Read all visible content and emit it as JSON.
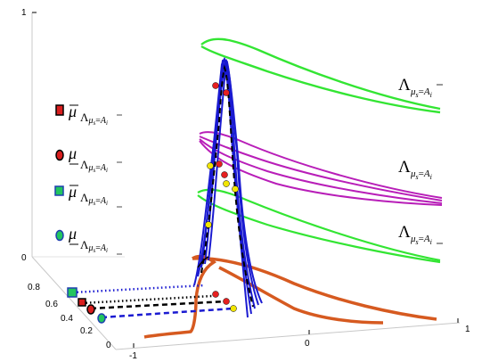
{
  "axes": {
    "ticks": {
      "z_top": "1",
      "z_bottom": "0",
      "left_0_8": "0.8",
      "left_0_6": "0.6",
      "left_0_4": "0.4",
      "left_0_2": "0.2",
      "left_0": "0",
      "bottom_neg1": "-1",
      "bottom_0": "0",
      "bottom_1": "1"
    }
  },
  "curve_labels": {
    "top": {
      "main": "Λ",
      "sub_mu": "μ",
      "sub_s": "s",
      "sub_eq": "=",
      "sub_A": "A",
      "sub_i": "i",
      "decor": "bar"
    },
    "middle": {
      "main": "Λ",
      "sub_mu": "μ",
      "sub_s": "s",
      "sub_eq": "=",
      "sub_A": "A",
      "sub_i": "i",
      "decor": "none"
    },
    "bottom": {
      "main": "Λ",
      "sub_mu": "μ",
      "sub_s": "s",
      "sub_eq": "=",
      "sub_A": "A",
      "sub_i": "i",
      "decor": "underline"
    }
  },
  "legend": [
    {
      "mu": "μ",
      "mu_decor": "bar",
      "sub_L": "Λ",
      "sub_mu": "μ",
      "sub_s": "s",
      "sub_eq": "=",
      "sub_A": "A",
      "sub_i": "i",
      "sub_decor": "bar",
      "marker": "square",
      "marker_fill": "#d81e1e",
      "marker_stroke": "#000000"
    },
    {
      "mu": "μ",
      "mu_decor": "underline",
      "sub_L": "Λ",
      "sub_mu": "μ",
      "sub_s": "s",
      "sub_eq": "=",
      "sub_A": "A",
      "sub_i": "i",
      "sub_decor": "bar",
      "marker": "circle",
      "marker_fill": "#d81e1e",
      "marker_stroke": "#000000"
    },
    {
      "mu": "μ",
      "mu_decor": "bar",
      "sub_L": "Λ",
      "sub_mu": "μ",
      "sub_s": "s",
      "sub_eq": "=",
      "sub_A": "A",
      "sub_i": "i",
      "sub_decor": "underline",
      "marker": "square",
      "marker_fill": "#22c55e",
      "marker_stroke": "#1e40af"
    },
    {
      "mu": "μ",
      "mu_decor": "underline",
      "sub_L": "Λ",
      "sub_mu": "μ",
      "sub_s": "s",
      "sub_eq": "=",
      "sub_A": "A",
      "sub_i": "i",
      "sub_decor": "underline",
      "marker": "circle",
      "marker_fill": "#22c55e",
      "marker_stroke": "#1e40af"
    }
  ],
  "colors": {
    "green_curve": "#33e533",
    "magenta_curve": "#b81eb8",
    "orange_curve": "#d65a20",
    "blue_curve": "#1a1ad1",
    "black_dashed": "#000000",
    "red_marker": "#e62020",
    "yellow_marker": "#f2e600",
    "axis": "#c8c8c8"
  }
}
